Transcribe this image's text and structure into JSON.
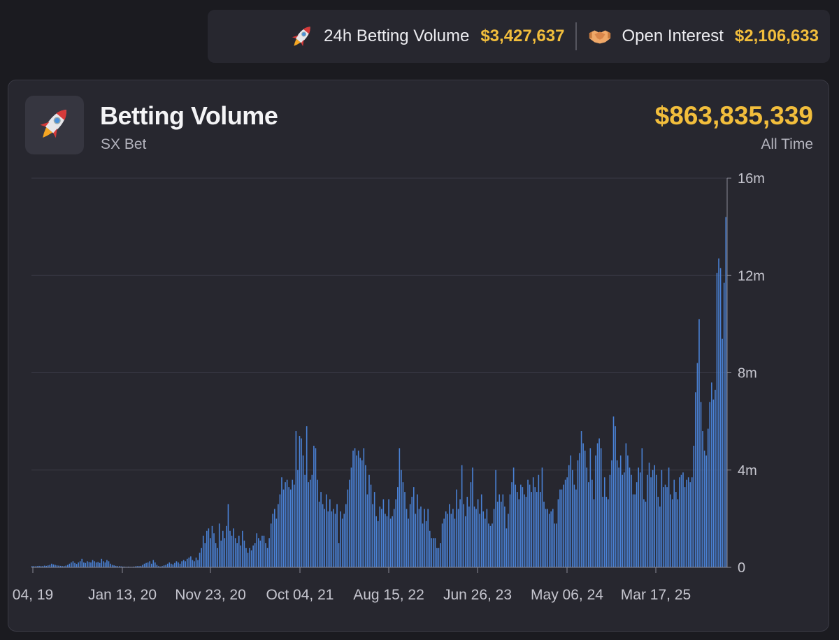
{
  "stats_bar": {
    "volume_24h_label": "24h Betting Volume",
    "volume_24h_value": "$3,427,637",
    "open_interest_label": "Open Interest",
    "open_interest_value": "$2,106,633",
    "rocket_icon": "rocket-icon",
    "handshake_icon": "handshake-icon"
  },
  "card": {
    "title": "Betting Volume",
    "subtitle": "SX Bet",
    "total_value": "$863,835,339",
    "total_label": "All Time"
  },
  "colors": {
    "accent": "#f2be3c",
    "bar": "#4a82d6",
    "background": "#1b1b20",
    "card": "#27272f"
  },
  "chart_data": {
    "type": "bar",
    "y_ticks": [
      "0",
      "4m",
      "8m",
      "12m",
      "16m"
    ],
    "ylim": [
      0,
      16000000
    ],
    "x_ticks": [
      "04, 19",
      "Jan 13, 20",
      "Nov 23, 20",
      "Oct 04, 21",
      "Aug 15, 22",
      "Jun 26, 23",
      "May 06, 24",
      "Mar 17, 25"
    ],
    "grid": true,
    "values_millions": [
      0.05,
      0.05,
      0.04,
      0.05,
      0.06,
      0.05,
      0.05,
      0.07,
      0.06,
      0.08,
      0.1,
      0.15,
      0.12,
      0.1,
      0.08,
      0.07,
      0.06,
      0.05,
      0.05,
      0.07,
      0.1,
      0.15,
      0.2,
      0.25,
      0.18,
      0.14,
      0.2,
      0.25,
      0.35,
      0.2,
      0.18,
      0.25,
      0.22,
      0.2,
      0.3,
      0.25,
      0.2,
      0.22,
      0.18,
      0.35,
      0.25,
      0.2,
      0.3,
      0.25,
      0.15,
      0.1,
      0.08,
      0.06,
      0.05,
      0.05,
      0.04,
      0.03,
      0.03,
      0.02,
      0.03,
      0.02,
      0.02,
      0.03,
      0.04,
      0.05,
      0.05,
      0.06,
      0.1,
      0.15,
      0.18,
      0.2,
      0.25,
      0.15,
      0.3,
      0.2,
      0.1,
      0.05,
      0.03,
      0.05,
      0.08,
      0.1,
      0.15,
      0.2,
      0.15,
      0.12,
      0.18,
      0.25,
      0.2,
      0.15,
      0.25,
      0.3,
      0.25,
      0.35,
      0.4,
      0.45,
      0.3,
      0.25,
      0.4,
      0.3,
      0.6,
      0.8,
      1.3,
      1.0,
      1.5,
      1.6,
      1.2,
      1.7,
      1.4,
      1.0,
      0.8,
      1.8,
      1.1,
      1.5,
      1.2,
      1.7,
      2.6,
      1.5,
      1.3,
      1.6,
      1.2,
      1.0,
      1.3,
      0.9,
      1.5,
      1.1,
      0.8,
      0.6,
      0.8,
      0.7,
      0.9,
      1.0,
      1.4,
      1.2,
      1.1,
      1.3,
      1.3,
      1.0,
      0.8,
      1.2,
      1.8,
      2.2,
      2.4,
      2.0,
      2.6,
      3.0,
      3.7,
      3.2,
      3.5,
      3.6,
      3.3,
      3.2,
      3.6,
      3.4,
      5.6,
      4.0,
      5.4,
      5.3,
      4.6,
      3.8,
      5.8,
      3.5,
      3.6,
      3.8,
      5.0,
      4.9,
      3.6,
      2.7,
      3.1,
      2.6,
      2.4,
      3.0,
      2.3,
      2.8,
      2.3,
      2.4,
      2.2,
      2.6,
      1.0,
      2.3,
      2.0,
      2.2,
      2.6,
      3.2,
      3.6,
      4.1,
      4.8,
      4.9,
      4.6,
      4.8,
      4.5,
      4.4,
      4.9,
      4.2,
      3.0,
      3.8,
      3.4,
      2.6,
      3.1,
      2.1,
      1.9,
      2.5,
      2.4,
      2.8,
      2.2,
      2.1,
      2.8,
      2.0,
      2.1,
      2.4,
      2.8,
      3.3,
      4.9,
      4.0,
      3.5,
      3.1,
      2.4,
      2.0,
      2.6,
      2.9,
      3.3,
      2.2,
      3.0,
      2.4,
      2.5,
      1.8,
      2.4,
      1.9,
      2.4,
      1.5,
      1.2,
      1.2,
      1.2,
      0.8,
      0.8,
      1.0,
      1.8,
      2.0,
      2.3,
      2.2,
      2.6,
      2.2,
      2.4,
      2.0,
      3.2,
      2.4,
      2.8,
      4.2,
      2.6,
      2.1,
      2.9,
      2.5,
      3.5,
      4.1,
      2.5,
      2.4,
      2.8,
      2.2,
      3.0,
      2.3,
      2.0,
      2.4,
      1.8,
      1.7,
      1.8,
      2.4,
      4.0,
      2.7,
      3.0,
      2.7,
      3.0,
      2.5,
      1.6,
      2.2,
      3.0,
      3.5,
      4.1,
      3.4,
      3.1,
      2.8,
      3.4,
      3.3,
      3.0,
      2.9,
      3.6,
      3.4,
      3.1,
      3.7,
      3.3,
      3.1,
      3.8,
      3.1,
      4.1,
      2.7,
      2.4,
      2.4,
      2.2,
      2.3,
      2.4,
      1.8,
      1.8,
      2.8,
      3.2,
      3.2,
      3.4,
      3.6,
      3.7,
      4.2,
      4.6,
      4.0,
      3.4,
      3.2,
      4.4,
      4.7,
      5.6,
      5.1,
      4.8,
      4.1,
      3.5,
      4.9,
      3.6,
      2.8,
      4.6,
      5.1,
      5.3,
      4.9,
      2.9,
      3.7,
      2.9,
      2.8,
      3.8,
      4.4,
      6.2,
      5.8,
      4.4,
      4.1,
      4.6,
      3.8,
      3.9,
      5.1,
      4.6,
      4.1,
      3.8,
      3.0,
      3.0,
      3.5,
      4.1,
      3.9,
      4.9,
      2.8,
      2.7,
      3.8,
      4.3,
      3.7,
      4.0,
      4.2,
      3.8,
      2.9,
      2.5,
      4.0,
      3.3,
      3.4,
      3.3,
      4.1,
      3.0,
      2.8,
      3.6,
      3.1,
      2.8,
      3.7,
      3.8,
      3.9,
      3.3,
      3.6,
      3.7,
      3.5,
      3.7,
      5.0,
      7.2,
      8.4,
      10.2,
      6.8,
      5.6,
      4.8,
      4.6,
      5.7,
      6.8,
      7.6,
      6.9,
      7.3,
      12.1,
      12.7,
      12.3,
      9.4,
      11.7,
      14.4
    ]
  }
}
